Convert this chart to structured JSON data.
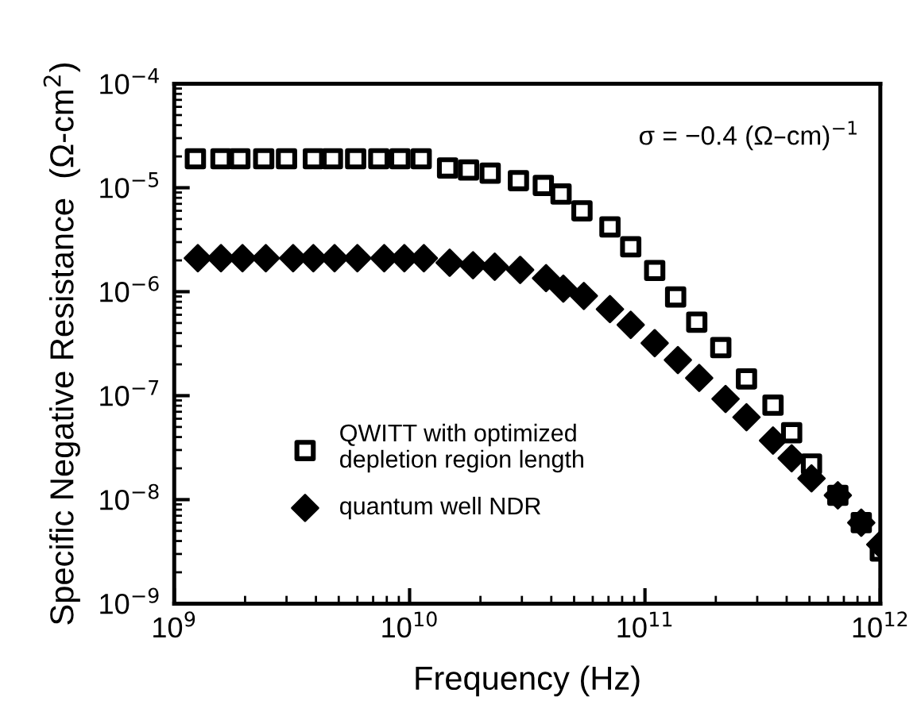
{
  "chart_data": {
    "type": "scatter",
    "xlabel": "Frequency (Hz)",
    "ylabel": "Specific Negative Resistance  (Ω-cm$^{2}$)",
    "log": "xy",
    "xlim": [
      1000000000.0,
      1000000000000.0
    ],
    "ylim": [
      1e-09,
      0.0001
    ],
    "xticks": [
      {
        "value": 1000000000.0,
        "label": "10$^{9}$"
      },
      {
        "value": 10000000000.0,
        "label": "10$^{10}$"
      },
      {
        "value": 100000000000.0,
        "label": "10$^{11}$"
      },
      {
        "value": 1000000000000.0,
        "label": "10$^{12}$"
      }
    ],
    "yticks": [
      {
        "value": 1e-09,
        "label": "10$^{−9}$"
      },
      {
        "value": 1e-08,
        "label": "10$^{−8}$"
      },
      {
        "value": 1e-07,
        "label": "10$^{−7}$"
      },
      {
        "value": 1e-06,
        "label": "10$^{−6}$"
      },
      {
        "value": 1e-05,
        "label": "10$^{−5}$"
      },
      {
        "value": 0.0001,
        "label": "10$^{−4}$"
      }
    ],
    "annotations": [
      "σ = −0.4 (Ω–cm)$^{−1}$"
    ],
    "legend": "lower left",
    "grid": false,
    "series": [
      {
        "name": "QWITT with optimized\ndepletion region length",
        "color": "#000000",
        "marker": "square",
        "x": [
          1230000000.0,
          1580000000.0,
          1900000000.0,
          2400000000.0,
          3000000000.0,
          3900000000.0,
          4700000000.0,
          5900000000.0,
          7400000000.0,
          9100000000.0,
          11200000000.0,
          14500000000.0,
          17800000000.0,
          22000000000.0,
          29000000000.0,
          37000000000.0,
          44000000000.0,
          54000000000.0,
          71000000000.0,
          87000000000.0,
          110000000000.0,
          135000000000.0,
          166000000000.0,
          210000000000.0,
          270000000000.0,
          350000000000.0,
          420000000000.0,
          510000000000.0,
          660000000000.0,
          830000000000.0,
          1000000000000.0
        ],
        "values": [
          1.9e-05,
          1.9e-05,
          1.9e-05,
          1.9e-05,
          1.9e-05,
          1.9e-05,
          1.9e-05,
          1.9e-05,
          1.9e-05,
          1.9e-05,
          1.9e-05,
          1.55e-05,
          1.48e-05,
          1.38e-05,
          1.17e-05,
          1.05e-05,
          8.7e-06,
          6e-06,
          4.2e-06,
          2.7e-06,
          1.6e-06,
          8.9e-07,
          5.1e-07,
          2.9e-07,
          1.45e-07,
          8.1e-08,
          4.4e-08,
          2.2e-08,
          1.1e-08,
          6e-09,
          3.2e-09
        ]
      },
      {
        "name": "quantum well NDR",
        "color": "#000000",
        "marker": "diamond",
        "x": [
          1260000000.0,
          1580000000.0,
          1950000000.0,
          2450000000.0,
          3200000000.0,
          3900000000.0,
          4800000000.0,
          6000000000.0,
          7800000000.0,
          9500000000.0,
          11500000000.0,
          14800000000.0,
          18600000000.0,
          23000000000.0,
          29500000000.0,
          38000000000.0,
          45000000000.0,
          55000000000.0,
          71000000000.0,
          87000000000.0,
          110000000000.0,
          138000000000.0,
          170000000000.0,
          220000000000.0,
          270000000000.0,
          350000000000.0,
          420000000000.0,
          510000000000.0,
          660000000000.0,
          830000000000.0,
          1000000000000.0
        ],
        "values": [
          2.1e-06,
          2.1e-06,
          2.1e-06,
          2.1e-06,
          2.1e-06,
          2.1e-06,
          2.1e-06,
          2.1e-06,
          2.1e-06,
          2.1e-06,
          2.1e-06,
          1.9e-06,
          1.8e-06,
          1.74e-06,
          1.62e-06,
          1.35e-06,
          1.07e-06,
          9.1e-07,
          6.8e-07,
          4.8e-07,
          3.2e-07,
          2.2e-07,
          1.48e-07,
          9.3e-08,
          6.2e-08,
          3.7e-08,
          2.5e-08,
          1.6e-08,
          1.1e-08,
          6e-09,
          3.7e-09
        ]
      }
    ]
  }
}
